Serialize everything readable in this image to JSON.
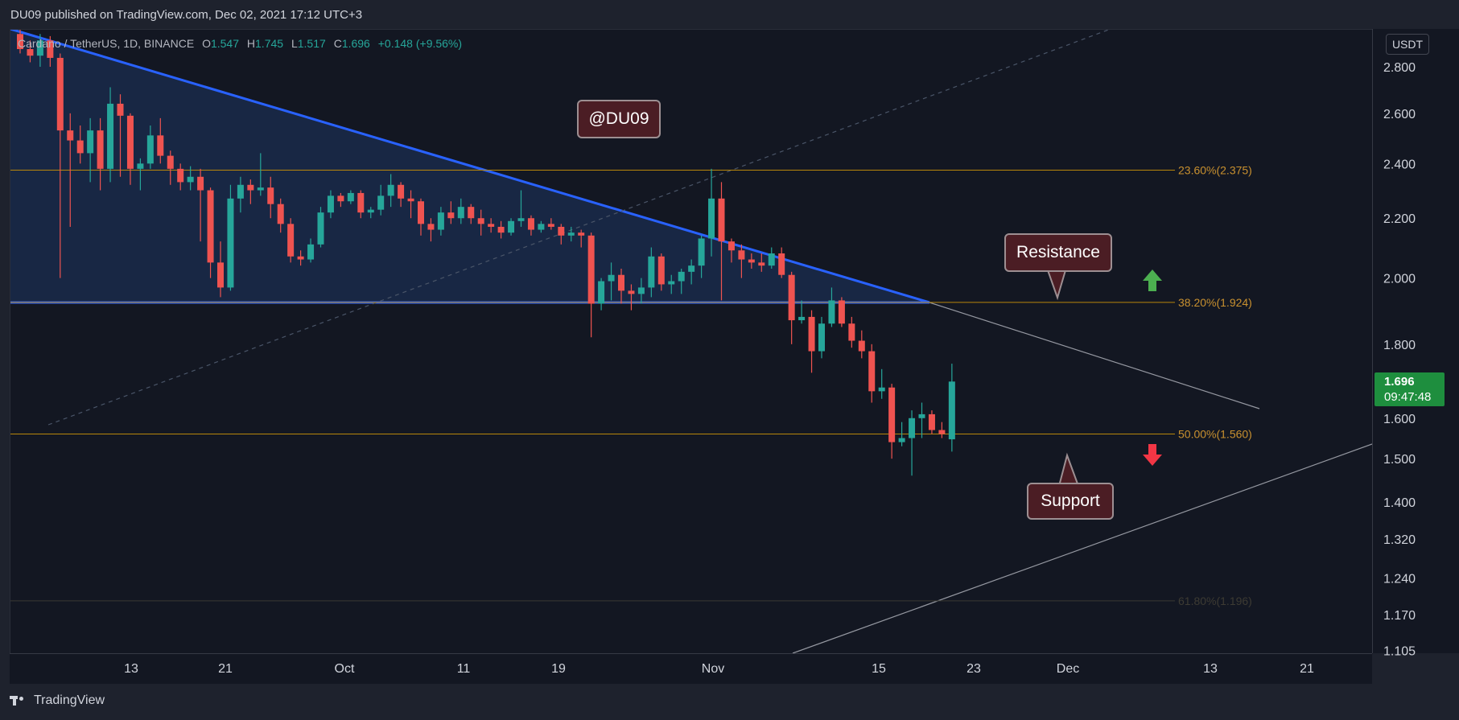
{
  "header": {
    "published": "DU09 published on TradingView.com, Dec 02, 2021 17:12 UTC+3"
  },
  "legend": {
    "symbol": "Cardano / TetherUS, 1D, BINANCE",
    "open_label": "O",
    "open": "1.547",
    "high_label": "H",
    "high": "1.745",
    "low_label": "L",
    "low": "1.517",
    "close_label": "C",
    "close": "1.696",
    "change": "+0.148 (+9.56%)"
  },
  "price_axis": {
    "currency": "USDT",
    "current_price": "1.696",
    "countdown": "09:47:48"
  },
  "annotations": {
    "watermark": "@DU09",
    "resistance": "Resistance",
    "support": "Support"
  },
  "footer": {
    "brand": "TradingView"
  },
  "colors": {
    "background": "#131722",
    "up": "#26a69a",
    "down": "#ef5350",
    "triangle_fill": "#1a2a4a",
    "trend_line": "#2962ff",
    "fib_line": "#b8860b",
    "fib_label": "#c8902f",
    "arrow_up": "#4caf50",
    "arrow_down": "#f23645",
    "callout_bg": "#4b1d24"
  },
  "chart_data": {
    "type": "candlestick",
    "x_axis_labels": [
      "13",
      "21",
      "Oct",
      "11",
      "19",
      "Nov",
      "15",
      "23",
      "Dec",
      "13",
      "21"
    ],
    "y_axis_labels": [
      "2.800",
      "2.600",
      "2.400",
      "2.200",
      "2.000",
      "1.800",
      "1.600",
      "1.500",
      "1.400",
      "1.320",
      "1.240",
      "1.170",
      "1.105"
    ],
    "y_scale": "log",
    "ylim": [
      1.1,
      2.95
    ],
    "fib_levels": [
      {
        "label": "23.60%(2.375)",
        "value": 2.375
      },
      {
        "label": "38.20%(1.924)",
        "value": 1.924
      },
      {
        "label": "50.00%(1.560)",
        "value": 1.56
      },
      {
        "label": "61.80%(1.196)",
        "value": 1.196
      }
    ],
    "ohlc": [
      [
        2.95,
        2.98,
        2.86,
        2.88
      ],
      [
        2.88,
        2.92,
        2.82,
        2.85
      ],
      [
        2.85,
        2.95,
        2.8,
        2.92
      ],
      [
        2.92,
        2.94,
        2.8,
        2.84
      ],
      [
        2.84,
        2.86,
        2.0,
        2.53
      ],
      [
        2.53,
        2.6,
        2.17,
        2.49
      ],
      [
        2.49,
        2.55,
        2.4,
        2.44
      ],
      [
        2.44,
        2.58,
        2.33,
        2.53
      ],
      [
        2.53,
        2.58,
        2.3,
        2.38
      ],
      [
        2.38,
        2.71,
        2.33,
        2.64
      ],
      [
        2.64,
        2.68,
        2.35,
        2.59
      ],
      [
        2.59,
        2.6,
        2.32,
        2.38
      ],
      [
        2.38,
        2.42,
        2.3,
        2.4
      ],
      [
        2.4,
        2.55,
        2.38,
        2.51
      ],
      [
        2.51,
        2.58,
        2.4,
        2.43
      ],
      [
        2.43,
        2.45,
        2.32,
        2.38
      ],
      [
        2.38,
        2.4,
        2.3,
        2.33
      ],
      [
        2.33,
        2.39,
        2.3,
        2.35
      ],
      [
        2.35,
        2.38,
        2.12,
        2.3
      ],
      [
        2.3,
        2.31,
        2.0,
        2.05
      ],
      [
        2.05,
        2.12,
        1.94,
        1.97
      ],
      [
        1.97,
        2.32,
        1.96,
        2.27
      ],
      [
        2.27,
        2.35,
        2.22,
        2.32
      ],
      [
        2.32,
        2.34,
        2.25,
        2.3
      ],
      [
        2.3,
        2.44,
        2.28,
        2.31
      ],
      [
        2.31,
        2.35,
        2.2,
        2.25
      ],
      [
        2.25,
        2.27,
        2.15,
        2.18
      ],
      [
        2.18,
        2.2,
        2.05,
        2.07
      ],
      [
        2.07,
        2.09,
        2.04,
        2.06
      ],
      [
        2.06,
        2.13,
        2.05,
        2.11
      ],
      [
        2.11,
        2.24,
        2.1,
        2.22
      ],
      [
        2.22,
        2.3,
        2.2,
        2.28
      ],
      [
        2.28,
        2.29,
        2.24,
        2.26
      ],
      [
        2.26,
        2.3,
        2.25,
        2.29
      ],
      [
        2.29,
        2.3,
        2.2,
        2.22
      ],
      [
        2.22,
        2.24,
        2.2,
        2.23
      ],
      [
        2.23,
        2.32,
        2.21,
        2.28
      ],
      [
        2.28,
        2.36,
        2.24,
        2.32
      ],
      [
        2.32,
        2.33,
        2.24,
        2.27
      ],
      [
        2.27,
        2.3,
        2.2,
        2.26
      ],
      [
        2.26,
        2.27,
        2.14,
        2.18
      ],
      [
        2.18,
        2.2,
        2.12,
        2.16
      ],
      [
        2.16,
        2.24,
        2.14,
        2.22
      ],
      [
        2.22,
        2.26,
        2.18,
        2.2
      ],
      [
        2.2,
        2.27,
        2.18,
        2.24
      ],
      [
        2.24,
        2.25,
        2.18,
        2.2
      ],
      [
        2.2,
        2.23,
        2.14,
        2.18
      ],
      [
        2.18,
        2.2,
        2.15,
        2.17
      ],
      [
        2.17,
        2.19,
        2.13,
        2.15
      ],
      [
        2.15,
        2.2,
        2.14,
        2.19
      ],
      [
        2.19,
        2.3,
        2.17,
        2.2
      ],
      [
        2.2,
        2.21,
        2.14,
        2.16
      ],
      [
        2.16,
        2.19,
        2.15,
        2.18
      ],
      [
        2.18,
        2.2,
        2.16,
        2.17
      ],
      [
        2.17,
        2.18,
        2.11,
        2.14
      ],
      [
        2.14,
        2.17,
        2.12,
        2.15
      ],
      [
        2.15,
        2.16,
        2.1,
        2.14
      ],
      [
        2.14,
        2.15,
        1.82,
        1.92
      ],
      [
        1.92,
        2.0,
        1.9,
        1.99
      ],
      [
        1.99,
        2.05,
        1.93,
        2.01
      ],
      [
        2.01,
        2.03,
        1.92,
        1.96
      ],
      [
        1.96,
        1.98,
        1.9,
        1.95
      ],
      [
        1.95,
        2.0,
        1.92,
        1.97
      ],
      [
        1.97,
        2.1,
        1.94,
        2.07
      ],
      [
        2.07,
        2.08,
        1.96,
        1.98
      ],
      [
        1.98,
        2.01,
        1.95,
        1.99
      ],
      [
        1.99,
        2.03,
        1.95,
        2.02
      ],
      [
        2.02,
        2.06,
        1.98,
        2.04
      ],
      [
        2.04,
        2.14,
        2.0,
        2.13
      ],
      [
        2.13,
        2.38,
        2.07,
        2.27
      ],
      [
        2.27,
        2.33,
        1.93,
        2.12
      ],
      [
        2.12,
        2.13,
        2.05,
        2.09
      ],
      [
        2.09,
        2.11,
        2.0,
        2.06
      ],
      [
        2.06,
        2.08,
        2.03,
        2.05
      ],
      [
        2.05,
        2.08,
        2.02,
        2.04
      ],
      [
        2.04,
        2.1,
        2.03,
        2.08
      ],
      [
        2.08,
        2.1,
        2.0,
        2.01
      ],
      [
        2.01,
        2.02,
        1.8,
        1.87
      ],
      [
        1.87,
        1.93,
        1.86,
        1.88
      ],
      [
        1.88,
        1.9,
        1.72,
        1.78
      ],
      [
        1.78,
        1.88,
        1.76,
        1.86
      ],
      [
        1.86,
        1.97,
        1.85,
        1.93
      ],
      [
        1.93,
        1.94,
        1.85,
        1.86
      ],
      [
        1.86,
        1.88,
        1.79,
        1.81
      ],
      [
        1.81,
        1.84,
        1.76,
        1.78
      ],
      [
        1.78,
        1.8,
        1.64,
        1.67
      ],
      [
        1.67,
        1.73,
        1.65,
        1.68
      ],
      [
        1.68,
        1.69,
        1.5,
        1.54
      ],
      [
        1.54,
        1.59,
        1.53,
        1.55
      ],
      [
        1.55,
        1.62,
        1.46,
        1.6
      ],
      [
        1.6,
        1.64,
        1.55,
        1.61
      ],
      [
        1.61,
        1.62,
        1.56,
        1.57
      ],
      [
        1.57,
        1.59,
        1.55,
        1.56
      ],
      [
        1.547,
        1.745,
        1.517,
        1.696
      ]
    ]
  }
}
